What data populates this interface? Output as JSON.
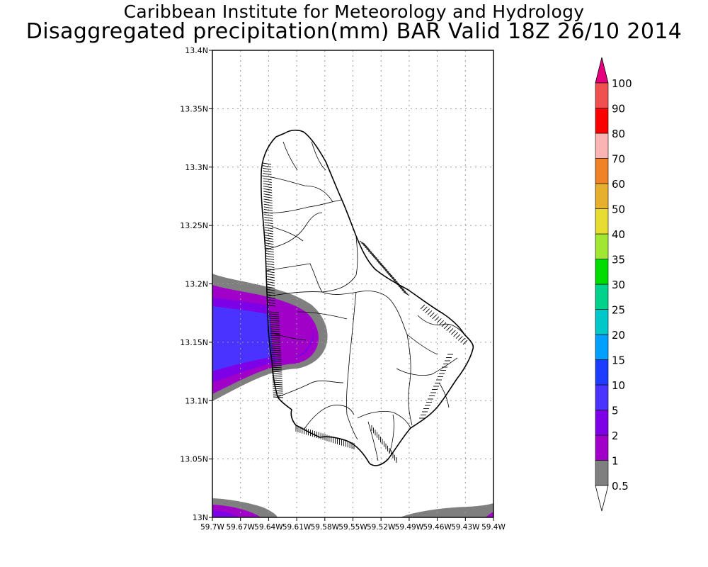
{
  "title": {
    "line1": "Caribbean Institute for Meteorology and Hydrology",
    "line2": "Disaggregated precipitation(mm) BAR Valid 18Z 26/10 2014"
  },
  "map": {
    "lat_labels": [
      "13.4N",
      "13.35N",
      "13.3N",
      "13.25N",
      "13.2N",
      "13.15N",
      "13.1N",
      "13.05N",
      "13N"
    ],
    "lon_labels": [
      "59.7W",
      "59.67W",
      "59.64W",
      "59.61W",
      "59.58W",
      "59.55W",
      "59.52W",
      "59.49W",
      "59.46W",
      "59.43W",
      "59.4W"
    ],
    "lat_range": [
      13.0,
      13.4
    ],
    "lon_range": [
      -59.7,
      -59.4
    ]
  },
  "legend": {
    "levels": [
      "0.5",
      "1",
      "2",
      "5",
      "10",
      "15",
      "20",
      "25",
      "30",
      "35",
      "40",
      "50",
      "60",
      "70",
      "80",
      "90",
      "100"
    ],
    "colors": [
      "#ffffff",
      "#7f7f7f",
      "#a000c8",
      "#7d00e6",
      "#4b33ff",
      "#1e3cff",
      "#00a0ff",
      "#00c8c8",
      "#00d28c",
      "#00dc00",
      "#a0e632",
      "#e6dc32",
      "#e6af2d",
      "#f08228",
      "#fab4b4",
      "#fa0000",
      "#f05050",
      "#e6007d"
    ]
  },
  "colors": {
    "gray": "#7f7f7f",
    "purple": "#a000c8",
    "violet": "#7d00e6",
    "blue": "#4b33ff"
  }
}
